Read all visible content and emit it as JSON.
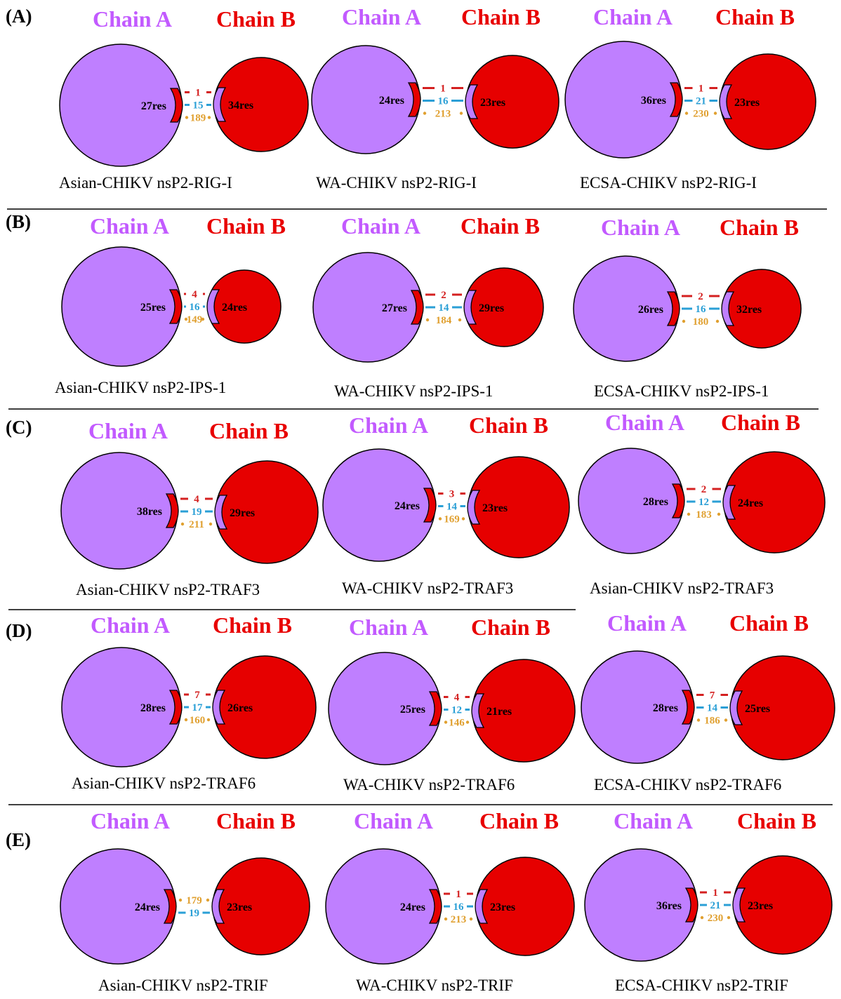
{
  "colors": {
    "chain_a": "#c25aff",
    "chain_b": "#e80000",
    "salt_bridge": "#d42020",
    "hbond": "#2a9fd6",
    "contact": "#e0a030",
    "circle_a_fill": "#bf7fff",
    "circle_b_fill": "#e60000"
  },
  "labels": {
    "chain_a": "Chain A",
    "chain_b": "Chain B"
  },
  "panels": [
    {
      "id": "A",
      "label": "(A)",
      "items": [
        {
          "caption": "Asian-CHIKV nsP2-RIG-I",
          "a_res": "27res",
          "b_res": "34res",
          "lines": [
            {
              "type": "salt_bridge",
              "value": "1"
            },
            {
              "type": "hbond",
              "value": "15"
            },
            {
              "type": "contact",
              "value": "189"
            }
          ]
        },
        {
          "caption": "WA-CHIKV nsP2-RIG-I",
          "a_res": "24res",
          "b_res": "23res",
          "lines": [
            {
              "type": "salt_bridge",
              "value": "1"
            },
            {
              "type": "hbond",
              "value": "16"
            },
            {
              "type": "contact",
              "value": "213"
            }
          ]
        },
        {
          "caption": "ECSA-CHIKV nsP2-RIG-I",
          "a_res": "36res",
          "b_res": "23res",
          "lines": [
            {
              "type": "salt_bridge",
              "value": "1"
            },
            {
              "type": "hbond",
              "value": "21"
            },
            {
              "type": "contact",
              "value": "230"
            }
          ]
        }
      ]
    },
    {
      "id": "B",
      "label": "(B)",
      "items": [
        {
          "caption": "Asian-CHIKV nsP2-IPS-1",
          "a_res": "25res",
          "b_res": "24res",
          "lines": [
            {
              "type": "salt_bridge",
              "value": "4"
            },
            {
              "type": "hbond",
              "value": "16"
            },
            {
              "type": "contact",
              "value": "149"
            }
          ]
        },
        {
          "caption": "WA-CHIKV nsP2-IPS-1",
          "a_res": "27res",
          "b_res": "29res",
          "lines": [
            {
              "type": "salt_bridge",
              "value": "2"
            },
            {
              "type": "hbond",
              "value": "14"
            },
            {
              "type": "contact",
              "value": "184"
            }
          ]
        },
        {
          "caption": "ECSA-CHIKV nsP2-IPS-1",
          "a_res": "26res",
          "b_res": "32res",
          "lines": [
            {
              "type": "salt_bridge",
              "value": "2"
            },
            {
              "type": "hbond",
              "value": "16"
            },
            {
              "type": "contact",
              "value": "180"
            }
          ]
        }
      ]
    },
    {
      "id": "C",
      "label": "(C)",
      "items": [
        {
          "caption": "Asian-CHIKV nsP2-TRAF3",
          "a_res": "38res",
          "b_res": "29res",
          "lines": [
            {
              "type": "salt_bridge",
              "value": "4"
            },
            {
              "type": "hbond",
              "value": "19"
            },
            {
              "type": "contact",
              "value": "211"
            }
          ]
        },
        {
          "caption": "WA-CHIKV nsP2-TRAF3",
          "a_res": "24res",
          "b_res": "23res",
          "lines": [
            {
              "type": "salt_bridge",
              "value": "3"
            },
            {
              "type": "hbond",
              "value": "14"
            },
            {
              "type": "contact",
              "value": "169"
            }
          ]
        },
        {
          "caption": "Asian-CHIKV nsP2-TRAF3",
          "a_res": "28res",
          "b_res": "24res",
          "lines": [
            {
              "type": "salt_bridge",
              "value": "2"
            },
            {
              "type": "hbond",
              "value": "12"
            },
            {
              "type": "contact",
              "value": "183"
            }
          ]
        }
      ]
    },
    {
      "id": "D",
      "label": "(D)",
      "items": [
        {
          "caption": "Asian-CHIKV nsP2-TRAF6",
          "a_res": "28res",
          "b_res": "26res",
          "lines": [
            {
              "type": "salt_bridge",
              "value": "7"
            },
            {
              "type": "hbond",
              "value": "17"
            },
            {
              "type": "contact",
              "value": "160"
            }
          ]
        },
        {
          "caption": "WA-CHIKV nsP2-TRAF6",
          "a_res": "25res",
          "b_res": "21res",
          "lines": [
            {
              "type": "salt_bridge",
              "value": "4"
            },
            {
              "type": "hbond",
              "value": "12"
            },
            {
              "type": "contact",
              "value": "146"
            }
          ]
        },
        {
          "caption": "ECSA-CHIKV nsP2-TRAF6",
          "a_res": "28res",
          "b_res": "25res",
          "lines": [
            {
              "type": "salt_bridge",
              "value": "7"
            },
            {
              "type": "hbond",
              "value": "14"
            },
            {
              "type": "contact",
              "value": "186"
            }
          ]
        }
      ]
    },
    {
      "id": "E",
      "label": "(E)",
      "items": [
        {
          "caption": "Asian-CHIKV nsP2-TRIF",
          "a_res": "24res",
          "b_res": "23res",
          "lines": [
            {
              "type": "contact",
              "value": "179"
            },
            {
              "type": "hbond",
              "value": "19"
            }
          ]
        },
        {
          "caption": "WA-CHIKV nsP2-TRIF",
          "a_res": "24res",
          "b_res": "23res",
          "lines": [
            {
              "type": "salt_bridge",
              "value": "1"
            },
            {
              "type": "hbond",
              "value": "16"
            },
            {
              "type": "contact",
              "value": "213"
            }
          ]
        },
        {
          "caption": "ECSA-CHIKV nsP2-TRIF",
          "a_res": "36res",
          "b_res": "23res",
          "lines": [
            {
              "type": "salt_bridge",
              "value": "1"
            },
            {
              "type": "hbond",
              "value": "21"
            },
            {
              "type": "contact",
              "value": "230"
            }
          ]
        }
      ]
    }
  ]
}
